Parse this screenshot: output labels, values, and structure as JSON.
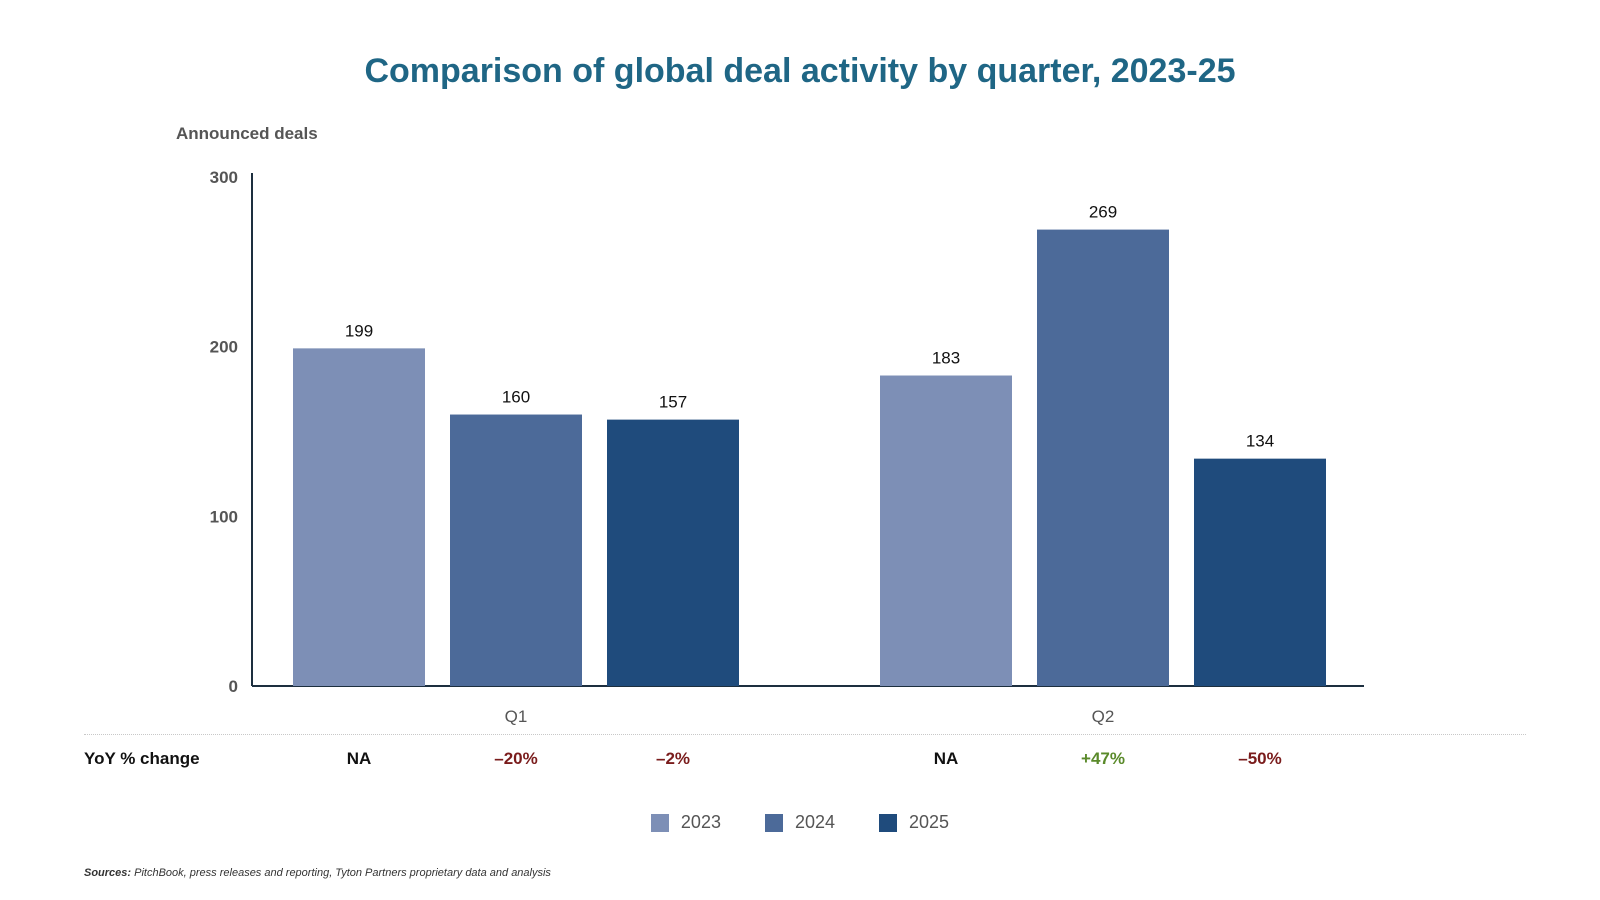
{
  "chart_data": {
    "type": "bar",
    "title": "Comparison of global deal activity by quarter, 2023-25",
    "ylabel": "Announced deals",
    "xlabel": "",
    "ylim": [
      0,
      300
    ],
    "yticks": [
      0,
      100,
      200,
      300
    ],
    "categories": [
      "Q1",
      "Q2"
    ],
    "series": [
      {
        "name": "2023",
        "color": "#7d8fb6",
        "values": [
          199,
          183
        ]
      },
      {
        "name": "2024",
        "color": "#4c6a99",
        "values": [
          160,
          269
        ]
      },
      {
        "name": "2025",
        "color": "#1f4b7c",
        "values": [
          157,
          134
        ]
      }
    ],
    "grid": false,
    "legend_position": "bottom"
  },
  "yoy": {
    "label": "YoY % change",
    "rows": [
      [
        {
          "text": "NA",
          "color": "#111111"
        },
        {
          "text": "–20%",
          "color": "#7a1c1c"
        },
        {
          "text": "–2%",
          "color": "#7a1c1c"
        }
      ],
      [
        {
          "text": "NA",
          "color": "#111111"
        },
        {
          "text": "+47%",
          "color": "#5a8a2a"
        },
        {
          "text": "–50%",
          "color": "#7a1c1c"
        }
      ]
    ]
  },
  "sources": {
    "label": "Sources:",
    "text": "PitchBook, press releases and reporting, Tyton Partners proprietary data and analysis"
  }
}
